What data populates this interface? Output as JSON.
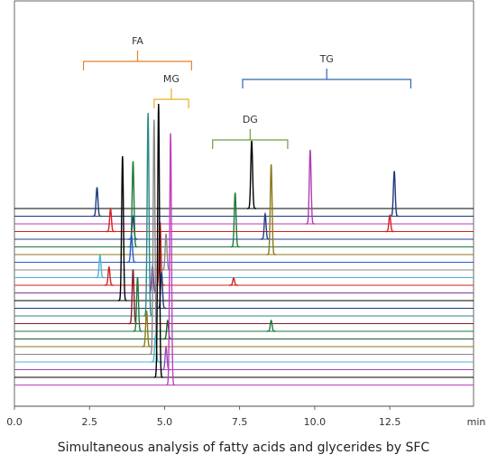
{
  "chart_data": {
    "type": "chromatogram",
    "title": "Simultaneous analysis of fatty acids and glycerides by SFC",
    "x_label": "min",
    "xlim": [
      0,
      15.2
    ],
    "xticks": [
      {
        "value": 0,
        "label": "0.0"
      },
      2.5,
      {
        "value": 5,
        "label": "5.0"
      },
      7.5,
      {
        "value": 10,
        "label": "10.0"
      },
      12.5
    ],
    "annotations": [
      {
        "text": "FA",
        "color": "#e8822a",
        "x": [
          2.3,
          5.9
        ]
      },
      {
        "text": "MG",
        "color": "#e8b020",
        "x": [
          4.65,
          5.8
        ]
      },
      {
        "text": "DG",
        "color": "#6aa040",
        "x": [
          6.6,
          9.1
        ]
      },
      {
        "text": "TG",
        "color": "#2a6aaa",
        "x": [
          7.6,
          13.2
        ]
      }
    ],
    "series": [
      {
        "color": "#000000",
        "x": [
          7.9
        ],
        "values": [
          75
        ]
      },
      {
        "color": "#1f3a7a",
        "x": [
          2.75,
          12.65
        ],
        "values": [
          32,
          50
        ]
      },
      {
        "color": "#b23db4",
        "x": [
          9.85
        ],
        "values": [
          82
        ]
      },
      {
        "color": "#d62020",
        "x": [
          3.2,
          12.5
        ],
        "values": [
          25,
          18
        ]
      },
      {
        "color": "#263c8a",
        "x": [
          3.95,
          8.35
        ],
        "values": [
          25,
          28
        ]
      },
      {
        "color": "#1f7a3a",
        "x": [
          3.95,
          7.35
        ],
        "values": [
          95,
          60
        ]
      },
      {
        "color": "#8a7a1a",
        "x": [
          8.55
        ],
        "values": [
          100
        ]
      },
      {
        "color": "#2a5ad0",
        "x": [
          3.9
        ],
        "values": [
          30
        ]
      },
      {
        "color": "#888888",
        "x": [
          5.05
        ],
        "values": [
          40
        ]
      },
      {
        "color": "#4fb3d0",
        "x": [
          2.85
        ],
        "values": [
          25
        ]
      },
      {
        "color": "#d62020",
        "x": [
          3.15,
          4.85,
          7.3
        ],
        "values": [
          20,
          70,
          8
        ]
      },
      {
        "color": "#7a3a9a",
        "x": [
          4.6
        ],
        "values": [
          30
        ]
      },
      {
        "color": "#000000",
        "x": [
          3.6
        ],
        "values": [
          160
        ]
      },
      {
        "color": "#1f3a7a",
        "x": [
          4.9
        ],
        "values": [
          40
        ]
      },
      {
        "color": "#2a8a8a",
        "x": [
          4.45
        ],
        "values": [
          225
        ]
      },
      {
        "color": "#8a1a2a",
        "x": [
          3.95
        ],
        "values": [
          60
        ]
      },
      {
        "color": "#1f7a3a",
        "x": [
          4.1,
          8.55
        ],
        "values": [
          60,
          12
        ]
      },
      {
        "color": "#1a5a2a",
        "x": [
          5.1
        ],
        "values": [
          20
        ]
      },
      {
        "color": "#8a7a1a",
        "x": [
          4.4
        ],
        "values": [
          40
        ]
      },
      {
        "color": "#888888",
        "x": [
          4.65
        ],
        "values": [
          260
        ]
      },
      {
        "color": "#4fb3d0",
        "x": [
          4.7
        ],
        "values": [
          30
        ]
      },
      {
        "color": "#9a4ab0",
        "x": [
          5.05
        ],
        "values": [
          25
        ]
      },
      {
        "color": "#000000",
        "x": [
          4.8
        ],
        "values": [
          303
        ]
      },
      {
        "color": "#c040c0",
        "x": [
          5.2
        ],
        "values": [
          279
        ]
      }
    ]
  }
}
